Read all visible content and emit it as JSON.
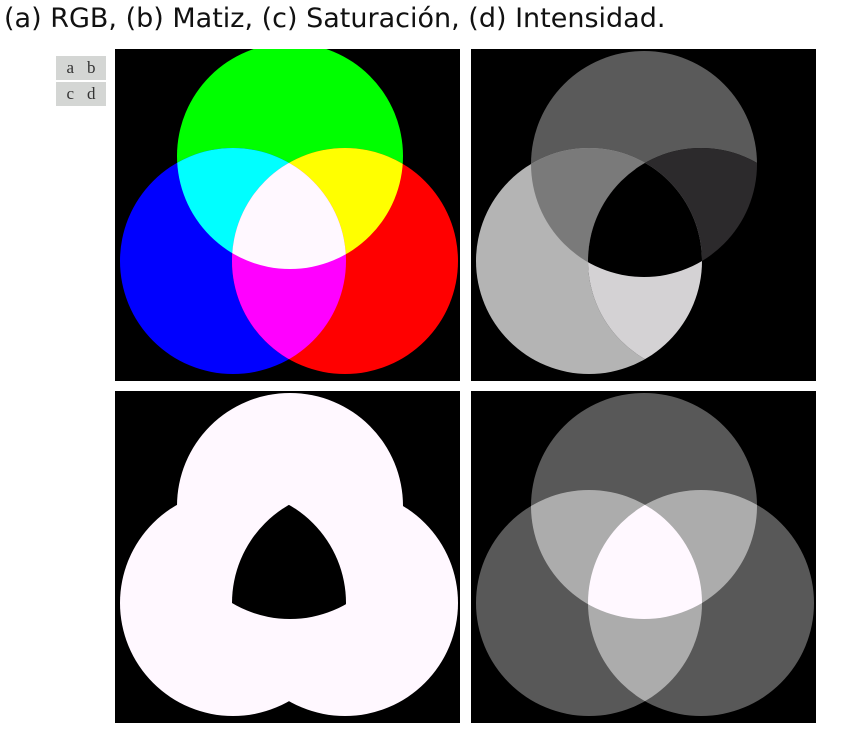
{
  "caption": "(a) RGB, (b) Matiz, (c) Saturación, (d) Intensidad.",
  "legend": {
    "a": "a",
    "b": "b",
    "c": "c",
    "d": "d"
  },
  "colors": {
    "background": "#000000",
    "red": "#ff0000",
    "green": "#00ff00",
    "blue": "#0000ff",
    "cyan": "#00ffff",
    "yellow": "#ffff00",
    "magenta": "#ff00ff",
    "white": "#fff8ff"
  }
}
